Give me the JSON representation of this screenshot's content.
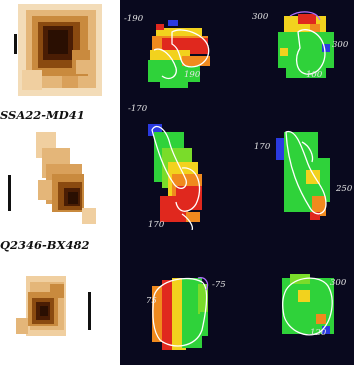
{
  "colors": {
    "panel_bg": "#09091e",
    "map_red": "#e0281e",
    "map_orange": "#f08a1e",
    "map_yellow": "#f2d21e",
    "map_green": "#2fd23a",
    "map_blue": "#2a3ae0",
    "contour": "#ffffff",
    "galaxy_dark": "#2a0f02",
    "galaxy_mid": "#8a4a10",
    "galaxy_light": "#d9a05a"
  },
  "rows": [
    {
      "label": "",
      "velocity_labels_left": [
        "-190",
        "190"
      ],
      "velocity_labels_right": [
        "300",
        "300",
        "100"
      ]
    },
    {
      "label": "SSA22-MD41",
      "velocity_labels_left": [
        "-170",
        "170"
      ],
      "velocity_labels_right": [
        "170",
        "250"
      ]
    },
    {
      "label": "Q2346-BX482",
      "velocity_labels_left": [
        "75",
        "-75"
      ],
      "velocity_labels_right": [
        "300",
        "120"
      ]
    }
  ]
}
